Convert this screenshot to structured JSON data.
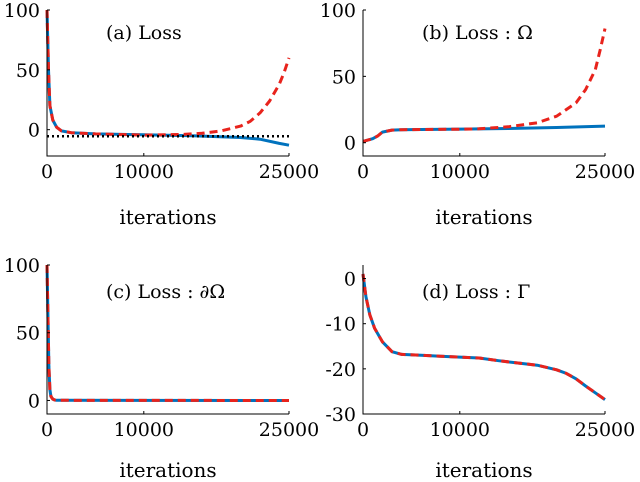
{
  "colors": {
    "series_a": "#0072BD",
    "series_b": "#E8231C",
    "reference": "#000000"
  },
  "chart_data": [
    {
      "type": "line",
      "title": "(a) Loss",
      "xlabel": "iterations",
      "ylabel": "",
      "xlim": [
        0,
        25000
      ],
      "ylim": [
        -22,
        100
      ],
      "xticks": [
        0,
        10000,
        25000
      ],
      "yticks": [
        0,
        50,
        100
      ],
      "series": [
        {
          "name": "blue-solid",
          "style": "solid",
          "x": [
            0,
            150,
            300,
            600,
            1000,
            1500,
            2500,
            5000,
            10000,
            15000,
            20000,
            22000,
            24000,
            25000
          ],
          "y": [
            100,
            50,
            20,
            8,
            2,
            -1,
            -2.5,
            -3.5,
            -4.3,
            -5,
            -6.5,
            -8,
            -11.5,
            -13
          ]
        },
        {
          "name": "red-dashed",
          "style": "dashed",
          "x": [
            0,
            150,
            300,
            600,
            1000,
            1500,
            2500,
            5000,
            10000,
            14000,
            16000,
            18000,
            20000,
            21000,
            22000,
            23000,
            24000,
            24500,
            25000
          ],
          "y": [
            100,
            50,
            20,
            8,
            2,
            -1,
            -2.5,
            -3.5,
            -4.5,
            -4,
            -3,
            -1,
            3,
            7,
            14,
            24,
            38,
            48,
            60
          ]
        },
        {
          "name": "black-dotted",
          "style": "dotted",
          "x": [
            0,
            25000
          ],
          "y": [
            -5.5,
            -5.5
          ]
        }
      ]
    },
    {
      "type": "line",
      "title": "(b) Loss : Ω",
      "xlabel": "iterations",
      "ylabel": "",
      "xlim": [
        0,
        25000
      ],
      "ylim": [
        -10,
        100
      ],
      "xticks": [
        0,
        10000,
        25000
      ],
      "yticks": [
        0,
        50,
        100
      ],
      "series": [
        {
          "name": "blue-solid",
          "style": "solid",
          "x": [
            0,
            500,
            1000,
            1500,
            2000,
            3000,
            4000,
            6000,
            10000,
            15000,
            20000,
            25000
          ],
          "y": [
            1,
            2,
            3,
            5,
            8,
            9.5,
            9.8,
            10,
            10.3,
            10.7,
            11.5,
            12.5
          ]
        },
        {
          "name": "red-dashed",
          "style": "dashed",
          "x": [
            0,
            500,
            1000,
            1500,
            2000,
            3000,
            4000,
            6000,
            10000,
            12000,
            15000,
            18000,
            20000,
            22000,
            23000,
            24000,
            24500,
            25000
          ],
          "y": [
            1,
            2,
            3,
            5,
            8,
            9.5,
            9.8,
            10,
            10.2,
            10.5,
            12,
            15,
            20,
            30,
            40,
            55,
            70,
            86
          ]
        }
      ]
    },
    {
      "type": "line",
      "title": "(c) Loss : ∂Ω",
      "xlabel": "iterations",
      "ylabel": "",
      "xlim": [
        0,
        25000
      ],
      "ylim": [
        -10,
        100
      ],
      "xticks": [
        0,
        10000,
        25000
      ],
      "yticks": [
        0,
        50,
        100
      ],
      "series": [
        {
          "name": "blue-solid",
          "style": "solid",
          "x": [
            0,
            100,
            200,
            300,
            400,
            600,
            800,
            1000,
            25000
          ],
          "y": [
            100,
            60,
            25,
            8,
            3,
            1,
            0.3,
            0.1,
            0
          ]
        },
        {
          "name": "red-dashed",
          "style": "dashed",
          "x": [
            0,
            100,
            200,
            300,
            400,
            600,
            800,
            1000,
            25000
          ],
          "y": [
            100,
            60,
            25,
            8,
            3,
            1,
            0.3,
            0.1,
            0
          ]
        }
      ]
    },
    {
      "type": "line",
      "title": "(d) Loss : Γ",
      "xlabel": "iterations",
      "ylabel": "",
      "xlim": [
        0,
        25000
      ],
      "ylim": [
        -30,
        3
      ],
      "xticks": [
        0,
        10000,
        25000
      ],
      "yticks": [
        0,
        -10,
        -20,
        -30
      ],
      "series": [
        {
          "name": "blue-solid",
          "style": "solid",
          "x": [
            0,
            300,
            700,
            1200,
            2000,
            3000,
            4000,
            6000,
            8000,
            10000,
            12000,
            14000,
            16000,
            18000,
            20000,
            21000,
            22000,
            23000,
            24000,
            25000
          ],
          "y": [
            1,
            -4,
            -8,
            -11,
            -14,
            -16.2,
            -16.8,
            -17,
            -17.2,
            -17.4,
            -17.6,
            -18.2,
            -18.7,
            -19.2,
            -20.2,
            -21,
            -22.2,
            -23.8,
            -25.3,
            -26.8
          ]
        },
        {
          "name": "red-dashed",
          "style": "dashed",
          "x": [
            0,
            300,
            700,
            1200,
            2000,
            3000,
            4000,
            6000,
            8000,
            10000,
            12000,
            14000,
            16000,
            18000,
            20000,
            21000,
            22000,
            23000,
            24000,
            25000
          ],
          "y": [
            1,
            -4,
            -8,
            -11,
            -14,
            -16.2,
            -16.8,
            -17,
            -17.2,
            -17.4,
            -17.6,
            -18.2,
            -18.7,
            -19.2,
            -20.2,
            -21,
            -22.2,
            -23.8,
            -25.3,
            -26.8
          ]
        }
      ]
    }
  ]
}
